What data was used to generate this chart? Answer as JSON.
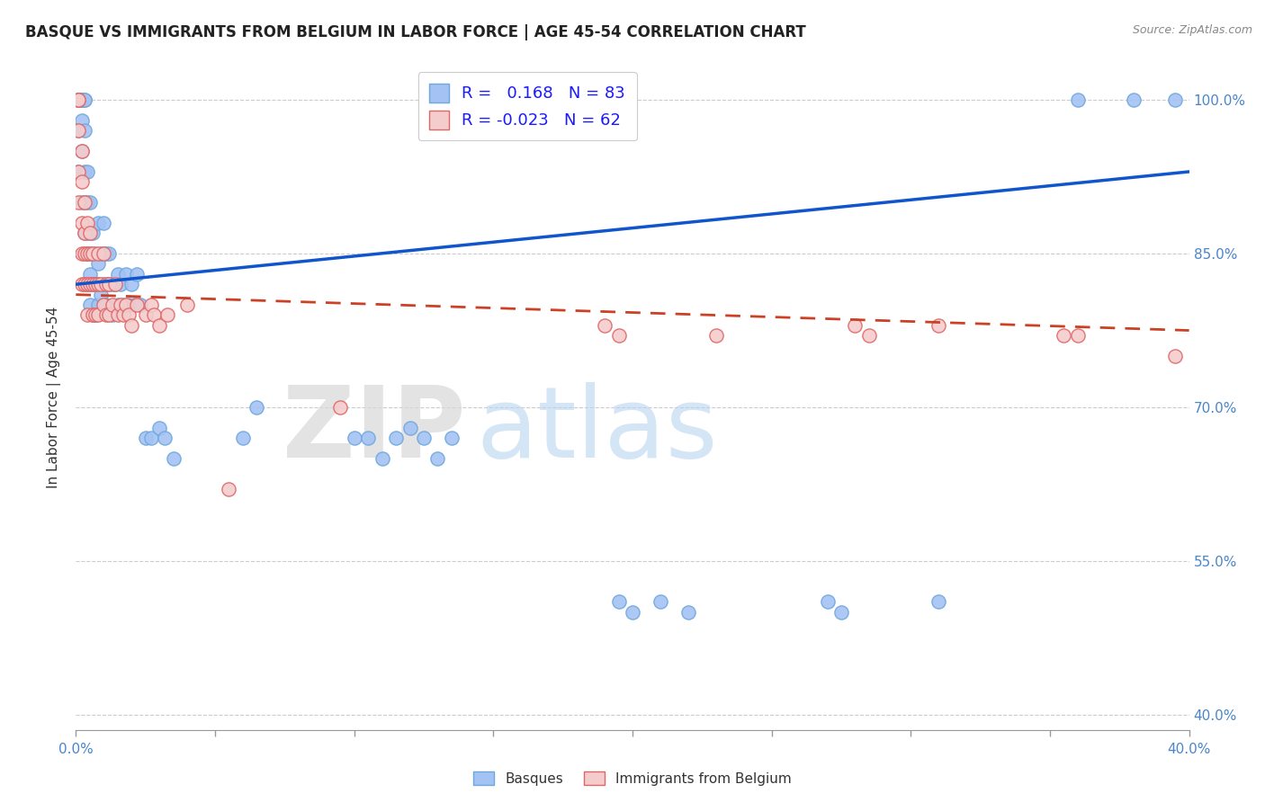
{
  "title": "BASQUE VS IMMIGRANTS FROM BELGIUM IN LABOR FORCE | AGE 45-54 CORRELATION CHART",
  "source": "Source: ZipAtlas.com",
  "ylabel": "In Labor Force | Age 45-54",
  "xlim": [
    0.0,
    0.4
  ],
  "ylim": [
    0.385,
    1.035
  ],
  "xticks": [
    0.0,
    0.05,
    0.1,
    0.15,
    0.2,
    0.25,
    0.3,
    0.35,
    0.4
  ],
  "yticks": [
    0.4,
    0.55,
    0.7,
    0.85,
    1.0
  ],
  "ytick_labels": [
    "40.0%",
    "55.0%",
    "70.0%",
    "85.0%",
    "100.0%"
  ],
  "xtick_labels": [
    "0.0%",
    "",
    "",
    "",
    "",
    "",
    "",
    "",
    "40.0%"
  ],
  "blue_color": "#a4c2f4",
  "blue_edge_color": "#6fa8dc",
  "pink_color": "#f4cccc",
  "pink_edge_color": "#e06666",
  "blue_line_color": "#1155cc",
  "pink_line_color": "#cc4125",
  "R_blue": 0.168,
  "N_blue": 83,
  "R_pink": -0.023,
  "N_pink": 62,
  "blue_trend_x0": 0.0,
  "blue_trend_y0": 0.82,
  "blue_trend_x1": 0.4,
  "blue_trend_y1": 0.93,
  "pink_trend_x0": 0.0,
  "pink_trend_y0": 0.81,
  "pink_trend_x1": 0.4,
  "pink_trend_y1": 0.775,
  "basques_x": [
    0.001,
    0.001,
    0.001,
    0.001,
    0.001,
    0.002,
    0.002,
    0.002,
    0.002,
    0.002,
    0.002,
    0.003,
    0.003,
    0.003,
    0.003,
    0.003,
    0.003,
    0.004,
    0.004,
    0.004,
    0.004,
    0.004,
    0.005,
    0.005,
    0.005,
    0.005,
    0.006,
    0.006,
    0.006,
    0.006,
    0.007,
    0.007,
    0.007,
    0.008,
    0.008,
    0.008,
    0.009,
    0.009,
    0.01,
    0.01,
    0.01,
    0.011,
    0.011,
    0.012,
    0.012,
    0.013,
    0.013,
    0.014,
    0.015,
    0.015,
    0.016,
    0.017,
    0.018,
    0.019,
    0.02,
    0.021,
    0.022,
    0.023,
    0.025,
    0.027,
    0.03,
    0.032,
    0.035,
    0.06,
    0.065,
    0.1,
    0.105,
    0.11,
    0.115,
    0.12,
    0.125,
    0.13,
    0.135,
    0.195,
    0.2,
    0.21,
    0.22,
    0.27,
    0.275,
    0.31,
    0.36,
    0.38,
    0.395
  ],
  "basques_y": [
    1.0,
    1.0,
    1.0,
    0.97,
    0.93,
    1.0,
    1.0,
    1.0,
    0.98,
    0.95,
    0.9,
    1.0,
    1.0,
    0.97,
    0.93,
    0.9,
    0.87,
    0.93,
    0.9,
    0.87,
    0.85,
    0.82,
    0.9,
    0.87,
    0.83,
    0.8,
    0.87,
    0.85,
    0.82,
    0.79,
    0.85,
    0.82,
    0.79,
    0.88,
    0.84,
    0.8,
    0.85,
    0.81,
    0.88,
    0.85,
    0.82,
    0.85,
    0.8,
    0.85,
    0.82,
    0.82,
    0.79,
    0.82,
    0.83,
    0.8,
    0.82,
    0.8,
    0.83,
    0.8,
    0.82,
    0.8,
    0.83,
    0.8,
    0.67,
    0.67,
    0.68,
    0.67,
    0.65,
    0.67,
    0.7,
    0.67,
    0.67,
    0.65,
    0.67,
    0.68,
    0.67,
    0.65,
    0.67,
    0.51,
    0.5,
    0.51,
    0.5,
    0.51,
    0.5,
    0.51,
    1.0,
    1.0,
    1.0
  ],
  "belgium_x": [
    0.001,
    0.001,
    0.001,
    0.001,
    0.001,
    0.002,
    0.002,
    0.002,
    0.002,
    0.002,
    0.003,
    0.003,
    0.003,
    0.003,
    0.004,
    0.004,
    0.004,
    0.004,
    0.005,
    0.005,
    0.005,
    0.006,
    0.006,
    0.006,
    0.007,
    0.007,
    0.008,
    0.008,
    0.008,
    0.009,
    0.01,
    0.01,
    0.011,
    0.011,
    0.012,
    0.012,
    0.013,
    0.014,
    0.015,
    0.016,
    0.017,
    0.018,
    0.019,
    0.02,
    0.022,
    0.025,
    0.027,
    0.028,
    0.03,
    0.033,
    0.04,
    0.055,
    0.095,
    0.19,
    0.195,
    0.23,
    0.28,
    0.285,
    0.31,
    0.355,
    0.36,
    0.395
  ],
  "belgium_y": [
    1.0,
    1.0,
    0.97,
    0.93,
    0.9,
    0.95,
    0.92,
    0.88,
    0.85,
    0.82,
    0.9,
    0.87,
    0.85,
    0.82,
    0.88,
    0.85,
    0.82,
    0.79,
    0.87,
    0.85,
    0.82,
    0.85,
    0.82,
    0.79,
    0.82,
    0.79,
    0.85,
    0.82,
    0.79,
    0.82,
    0.85,
    0.8,
    0.82,
    0.79,
    0.82,
    0.79,
    0.8,
    0.82,
    0.79,
    0.8,
    0.79,
    0.8,
    0.79,
    0.78,
    0.8,
    0.79,
    0.8,
    0.79,
    0.78,
    0.79,
    0.8,
    0.62,
    0.7,
    0.78,
    0.77,
    0.77,
    0.78,
    0.77,
    0.78,
    0.77,
    0.77,
    0.75
  ]
}
